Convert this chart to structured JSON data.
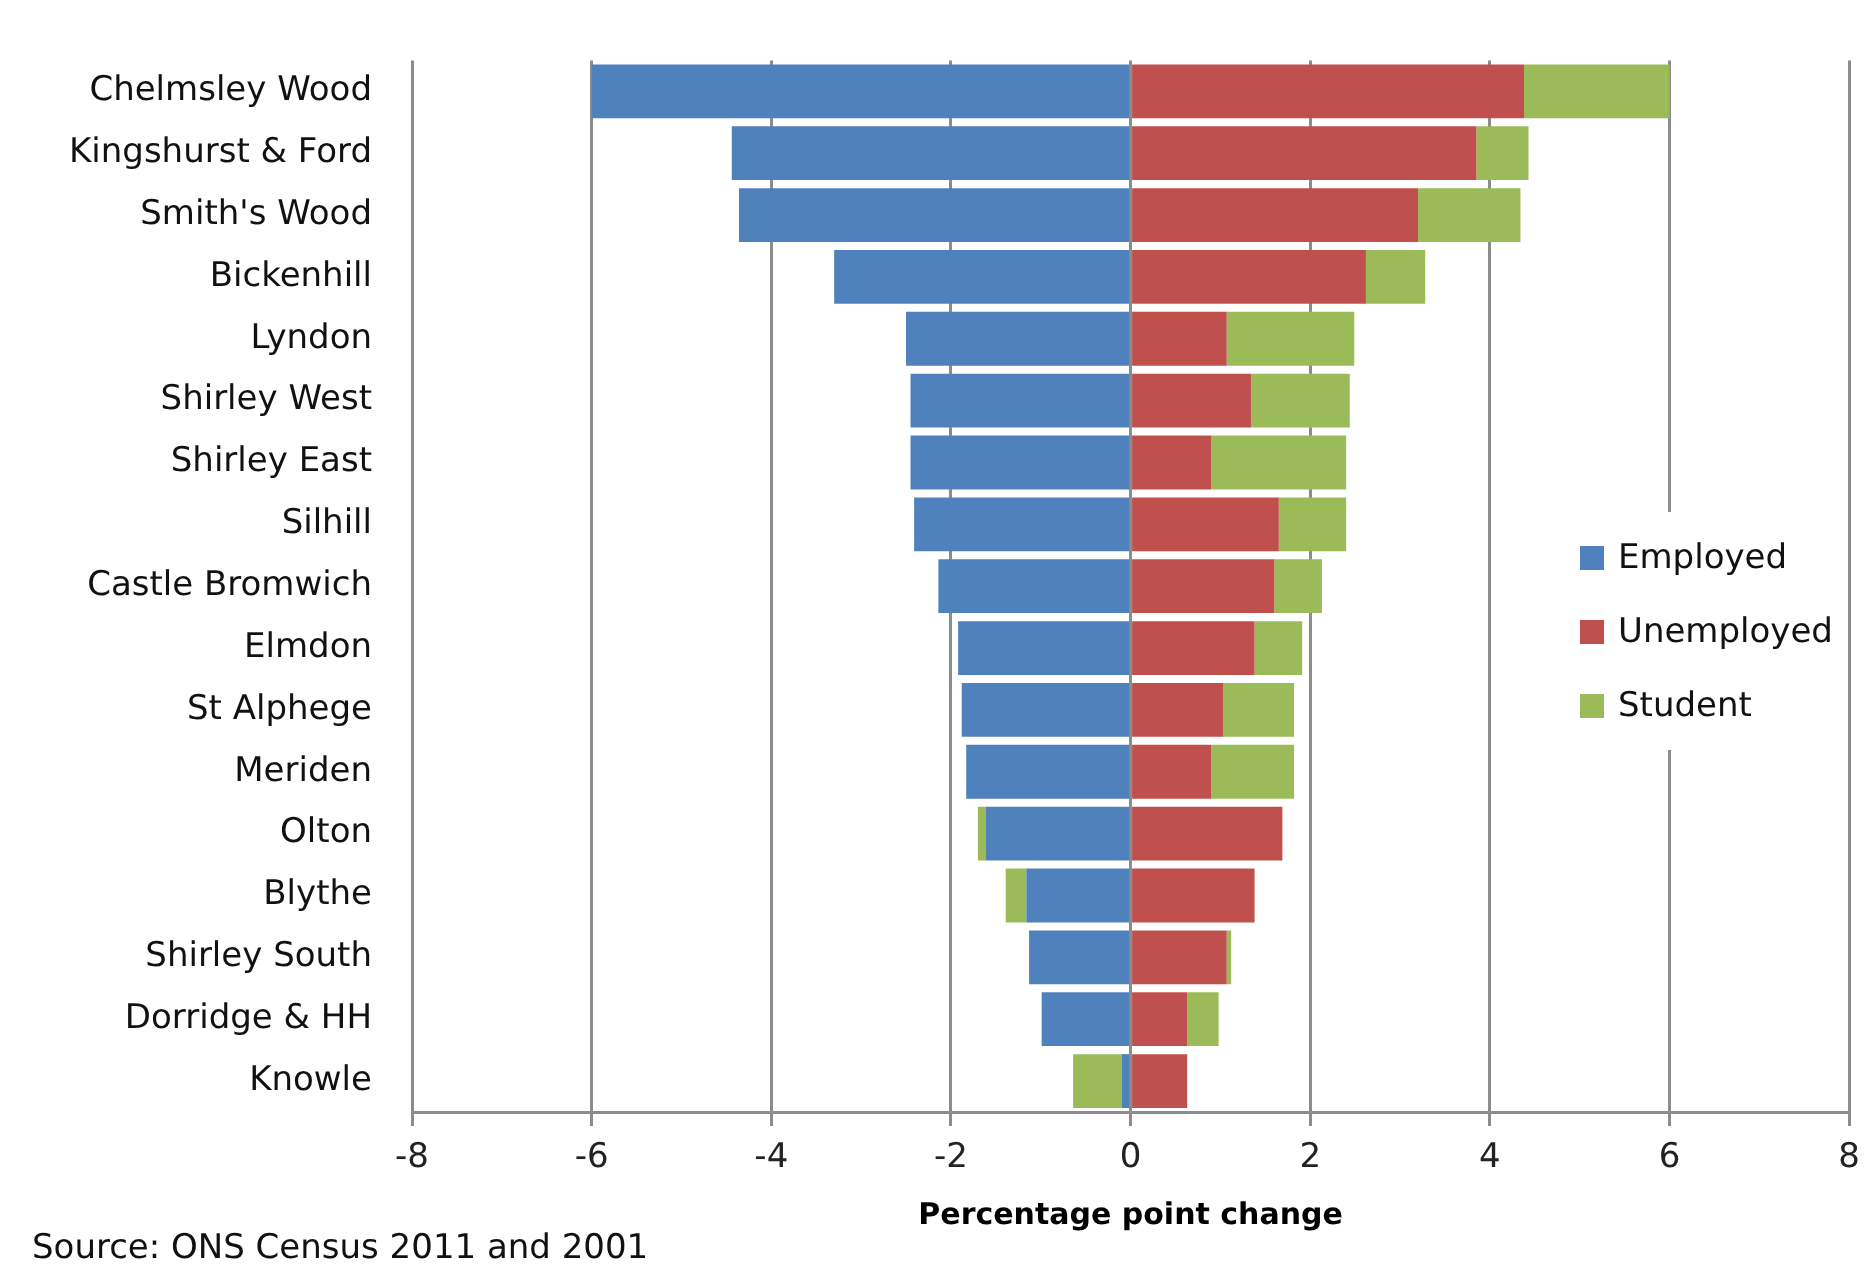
{
  "chart_data": {
    "type": "bar",
    "orientation": "horizontal",
    "stacked": true,
    "categories": [
      "Chelmsley Wood",
      "Kingshurst & Ford",
      "Smith's Wood",
      "Bickenhill",
      "Lyndon",
      "Shirley West",
      "Shirley East",
      "Silhill",
      "Castle Bromwich",
      "Elmdon",
      "St Alphege",
      "Meriden",
      "Olton",
      "Blythe",
      "Shirley South",
      "Dorridge & HH",
      "Knowle"
    ],
    "series": [
      {
        "name": "Employed",
        "color": "#4f81bd",
        "values": [
          -6.0,
          -4.44,
          -4.36,
          -3.3,
          -2.5,
          -2.45,
          -2.45,
          -2.41,
          -2.14,
          -1.92,
          -1.88,
          -1.83,
          -1.61,
          -1.16,
          -1.13,
          -0.99,
          -0.1
        ]
      },
      {
        "name": "Unemployed",
        "color": "#c0504d",
        "values": [
          4.38,
          3.85,
          3.2,
          2.62,
          1.07,
          1.34,
          0.9,
          1.65,
          1.6,
          1.38,
          1.03,
          0.9,
          1.69,
          1.38,
          1.07,
          0.63,
          0.63
        ]
      },
      {
        "name": "Student",
        "color": "#9bbb59",
        "values": [
          1.62,
          0.58,
          1.14,
          0.66,
          1.42,
          1.1,
          1.5,
          0.75,
          0.53,
          0.53,
          0.79,
          0.92,
          -0.09,
          -0.23,
          0.05,
          0.35,
          -0.54
        ]
      }
    ],
    "xlim": [
      -8,
      8
    ],
    "xticks": [
      -8,
      -6,
      -4,
      -2,
      0,
      2,
      4,
      6,
      8
    ],
    "xlabel": "Percentage point change",
    "annotations": [
      "Source: ONS Census 2011 and 2001"
    ],
    "grid": "x",
    "legend": "right"
  }
}
